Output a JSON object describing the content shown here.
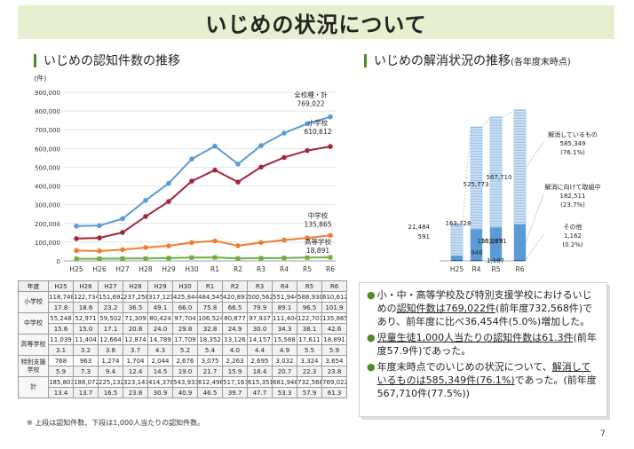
{
  "title": "いじめの状況について",
  "left_section_title": "いじめの認知件数の推移",
  "right_section_title": "いじめの解消状況の推移",
  "right_section_subtitle": "(各年度末時点)",
  "chart_data": [
    {
      "type": "line",
      "ylabel": "(件)",
      "ylim": [
        0,
        900000
      ],
      "yticks": [
        "0",
        "100,000",
        "200,000",
        "300,000",
        "400,000",
        "500,000",
        "600,000",
        "700,000",
        "800,000",
        "900,000"
      ],
      "categories": [
        "H25",
        "H26",
        "H27",
        "H28",
        "H29",
        "H30",
        "R1",
        "R2",
        "R3",
        "R4",
        "R5",
        "R6"
      ],
      "series": [
        {
          "name": "全校種・計",
          "end_label": "769,022",
          "color": "#5b9bd5",
          "values": [
            185803,
            188072,
            225132,
            323143,
            414378,
            543933,
            612496,
            517163,
            615351,
            681948,
            732568,
            769022
          ]
        },
        {
          "name": "小学校",
          "end_label": "610,612",
          "color": "#a3263b",
          "values": [
            118748,
            122734,
            151692,
            237256,
            317121,
            425844,
            484545,
            420897,
            500562,
            551944,
            588930,
            610612
          ]
        },
        {
          "name": "中学校",
          "end_label": "135,865",
          "color": "#ed7d31",
          "values": [
            55248,
            52971,
            59502,
            71309,
            80424,
            97704,
            106524,
            80877,
            97937,
            111404,
            122703,
            135865
          ]
        },
        {
          "name": "高等学校",
          "end_label": "18,891",
          "color": "#70ad47",
          "values": [
            11039,
            11404,
            12664,
            12874,
            14789,
            17709,
            18352,
            13126,
            14157,
            15568,
            17611,
            18891
          ]
        }
      ]
    },
    {
      "type": "bar",
      "categories": [
        "H25",
        "R4",
        "R5",
        "R6"
      ],
      "totals": [
        185803,
        681948,
        732568,
        769022
      ],
      "series": [
        {
          "name": "その他",
          "values": [
            591,
            946,
            1187,
            1162
          ],
          "color": "#1f4e79"
        },
        {
          "name": "解消に向けて取組中",
          "values": [
            21484,
            155229,
            163671,
            182511
          ],
          "color": "#5b9bd5"
        },
        {
          "name": "解消しているもの",
          "values": [
            163728,
            525773,
            567710,
            585349
          ],
          "color": "#9dc3e6"
        }
      ],
      "data_labels": [
        {
          "cat": "H25",
          "left": [
            "21,484",
            "591"
          ],
          "top": "163,728"
        },
        {
          "cat": "R4",
          "mid": "155,229",
          "top": "525,773",
          "bottom": "946"
        },
        {
          "cat": "R5",
          "mid": "163,671",
          "top": "567,710",
          "bottom": "1,187"
        }
      ],
      "legend_right": [
        {
          "lines": [
            "解消しているもの",
            "585,349",
            "(76.1%)"
          ],
          "value": 585349
        },
        {
          "lines": [
            "解消に向けて取組中",
            "182,511",
            "(23.7%)"
          ],
          "value": 182511
        },
        {
          "lines": [
            "その他",
            "1,162",
            "(0.2%)"
          ],
          "value": 1162
        }
      ]
    }
  ],
  "table": {
    "corner": "年度",
    "years": [
      "H25",
      "H26",
      "H27",
      "H28",
      "H29",
      "H30",
      "R1",
      "R2",
      "R3",
      "R4",
      "R5",
      "R6"
    ],
    "rows": [
      {
        "label": "小学校",
        "counts": [
          "118,748",
          "122,734",
          "151,692",
          "237,256",
          "317,121",
          "425,844",
          "484,545",
          "420,897",
          "500,562",
          "551,944",
          "588,930",
          "610,612"
        ],
        "per": [
          "17.8",
          "18.6",
          "23.2",
          "36.5",
          "49.1",
          "66.0",
          "75.8",
          "66.5",
          "79.9",
          "89.1",
          "96.5",
          "101.9"
        ]
      },
      {
        "label": "中学校",
        "counts": [
          "55,248",
          "52,971",
          "59,502",
          "71,309",
          "80,424",
          "97,704",
          "106,524",
          "80,877",
          "97,937",
          "111,404",
          "122,703",
          "135,865"
        ],
        "per": [
          "15.6",
          "15.0",
          "17.1",
          "20.8",
          "24.0",
          "29.8",
          "32.8",
          "24.9",
          "30.0",
          "34.3",
          "38.1",
          "42.6"
        ]
      },
      {
        "label": "高等学校",
        "counts": [
          "11,039",
          "11,404",
          "12,664",
          "12,874",
          "14,789",
          "17,709",
          "18,352",
          "13,126",
          "14,157",
          "15,568",
          "17,611",
          "18,891"
        ],
        "per": [
          "3.1",
          "3.2",
          "3.6",
          "3.7",
          "4.3",
          "5.2",
          "5.4",
          "4.0",
          "4.4",
          "4.9",
          "5.5",
          "5.9"
        ]
      },
      {
        "label": "特別支援学校",
        "counts": [
          "768",
          "963",
          "1,274",
          "1,704",
          "2,044",
          "2,676",
          "3,075",
          "2,263",
          "2,695",
          "3,032",
          "3,324",
          "3,654"
        ],
        "per": [
          "5.9",
          "7.3",
          "9.4",
          "12.4",
          "14.5",
          "19.0",
          "21.7",
          "15.9",
          "18.4",
          "20.7",
          "22.3",
          "23.8"
        ]
      },
      {
        "label": "計",
        "counts": [
          "185,803",
          "188,072",
          "225,132",
          "323,143",
          "414,378",
          "543,933",
          "612,496",
          "517,163",
          "615,351",
          "681,948",
          "732,568",
          "769,022"
        ],
        "per": [
          "13.4",
          "13.7",
          "16.5",
          "23.8",
          "30.9",
          "40.9",
          "46.5",
          "39.7",
          "47.7",
          "53.3",
          "57.9",
          "61.3"
        ]
      }
    ]
  },
  "note": "※ 上段は認知件数、下段は1,000人当たりの認知件数。",
  "bullets": [
    {
      "parts": [
        {
          "t": "小・中・高等学校及び特別支援学校におけるいじめの"
        },
        {
          "t": "認知件数は769,022件",
          "u": true
        },
        {
          "t": "(前年度732,568件)であり、前年度に比べ36,454件(5.0%)増加した。"
        }
      ]
    },
    {
      "parts": [
        {
          "t": "児童生徒1,000人当たりの認知件数は61.3件",
          "u": true
        },
        {
          "t": "(前年度57.9件)であった。"
        }
      ]
    },
    {
      "parts": [
        {
          "t": "年度末時点でのいじめの状況について、"
        },
        {
          "t": "解消しているものは585,349件(76.1%)",
          "u": true
        },
        {
          "t": "であった。(前年度567,710件(77.5%))"
        }
      ]
    }
  ],
  "page_number": "7"
}
